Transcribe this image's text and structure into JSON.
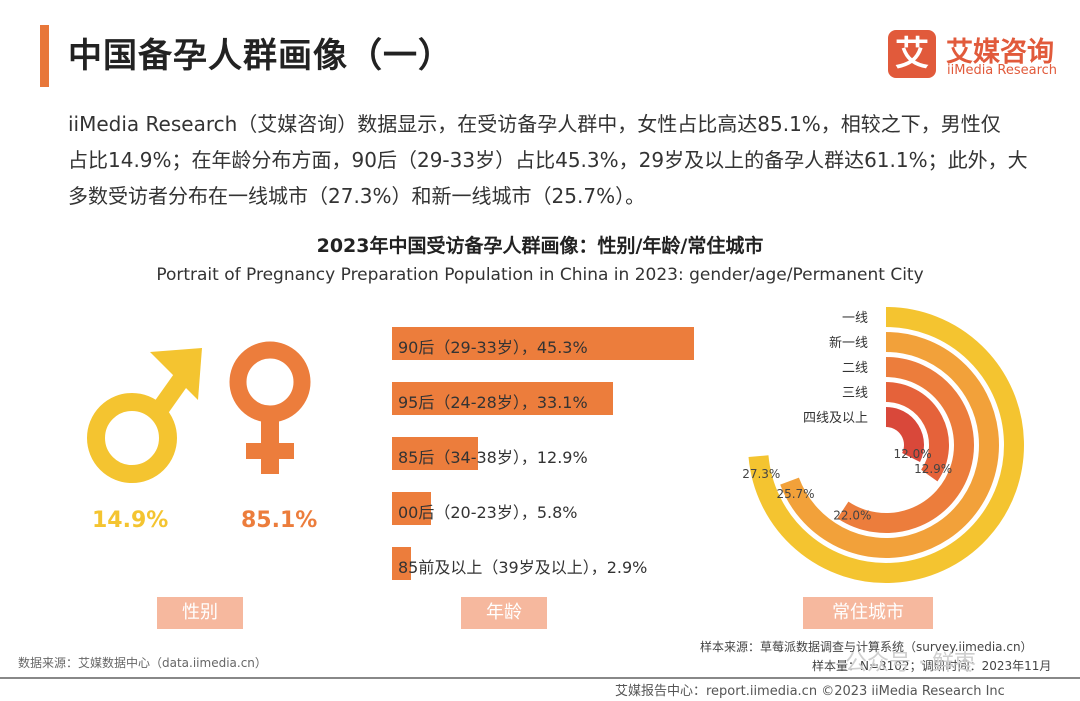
{
  "header": {
    "title": "中国备孕人群画像（一）",
    "logo_mark": "艾",
    "logo_cn": "艾媒咨询",
    "logo_en": "iiMedia Research"
  },
  "intro": {
    "line1": "iiMedia Research（艾媒咨询）数据显示，在受访备孕人群中，女性占比高达85.1%，相较之下，男性仅",
    "line2": "占比14.9%；在年龄分布方面，90后（29-33岁）占比45.3%，29岁及以上的备孕人群达61.1%；此外，大",
    "line3": "多数受访者分布在一线城市（27.3%）和新一线城市（25.7%）。"
  },
  "chart_title_cn": "2023年中国受访备孕人群画像：性别/年龄/常住城市",
  "chart_title_en": "Portrait of Pregnancy Preparation Population in China in 2023: gender/age/Permanent City",
  "sections": {
    "gender": "性别",
    "age": "年龄",
    "city": "常住城市"
  },
  "colors": {
    "accent": "#e8773a",
    "male": "#f4c430",
    "female": "#ec7d3c",
    "age_bar": "#ec7d3c",
    "section_bg": "#f6b89e"
  },
  "chart_data": [
    {
      "type": "pie",
      "name": "性别",
      "categories": [
        "男",
        "女"
      ],
      "values": [
        14.9,
        85.1
      ],
      "labels": [
        "14.9%",
        "85.1%"
      ],
      "icons": [
        "male-symbol-icon",
        "female-symbol-icon"
      ]
    },
    {
      "type": "bar",
      "orientation": "horizontal",
      "categories": [
        "90后（29-33岁）",
        "95后（24-28岁）",
        "85后（34-38岁）",
        "00后（20-23岁）",
        "85前及以上（39岁及以上）"
      ],
      "values": [
        45.3,
        33.1,
        12.9,
        5.8,
        2.9
      ],
      "labels": [
        "90后（29-33岁），45.3%",
        "95后（24-28岁），33.1%",
        "85后（34-38岁），12.9%",
        "00后（20-23岁），5.8%",
        "85前及以上（39岁及以上），2.9%"
      ],
      "xlim": [
        0,
        45.3
      ]
    },
    {
      "type": "radial-bar",
      "categories": [
        "一线",
        "新一线",
        "二线",
        "三线",
        "四线及以上"
      ],
      "values": [
        27.3,
        25.7,
        22.0,
        12.9,
        12.0
      ],
      "labels": [
        "27.3%",
        "25.7%",
        "22.0%",
        "12.9%",
        "12.0%"
      ],
      "colors": [
        "#f4c430",
        "#f2a13a",
        "#ec7d3c",
        "#e5623a",
        "#d9483a"
      ]
    }
  ],
  "footer": {
    "source_left": "数据来源：艾媒数据中心（data.iimedia.cn）",
    "sample_source": "样本来源：草莓派数据调查与计算系统（survey.iimedia.cn）",
    "sample_size": "样本量：N=3102；调研时间：2023年11月",
    "bottom": "艾媒报告中心：report.iimedia.cn     ©2023  iiMedia Research  Inc",
    "watermark": "公众号 · 鲜枣"
  }
}
